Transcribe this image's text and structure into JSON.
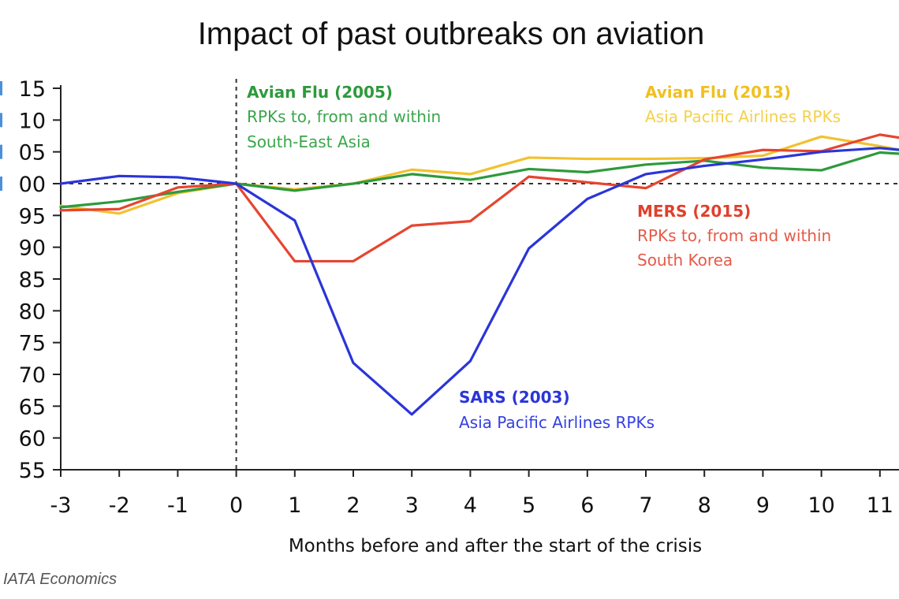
{
  "chart_data": {
    "type": "line",
    "title": "Impact of past outbreaks on aviation",
    "xlabel": "Months before and after the start of the crisis",
    "ylabel": "",
    "source": "IATA Economics",
    "x": [
      -3,
      -2,
      -1,
      0,
      1,
      2,
      3,
      4,
      5,
      6,
      7,
      8,
      9,
      10,
      11
    ],
    "xlim": [
      -3,
      11.35
    ],
    "ylim": [
      55,
      115
    ],
    "x_ticks": [
      "-3",
      "-2",
      "-1",
      "0",
      "1",
      "2",
      "3",
      "4",
      "5",
      "6",
      "7",
      "8",
      "9",
      "10",
      "11"
    ],
    "y_ticks": [
      55,
      60,
      65,
      70,
      75,
      80,
      85,
      90,
      95,
      100,
      105,
      110,
      115
    ],
    "y_tick_labels": [
      "55",
      "60",
      "65",
      "70",
      "75",
      "80",
      "85",
      "90",
      "95",
      "00",
      "05",
      "10",
      "15"
    ],
    "reference_lines": {
      "horizontal_dashed_at": 100,
      "vertical_dashed_at": 0
    },
    "grid": false,
    "legend": "inline-annotations",
    "series": [
      {
        "name": "Avian Flu (2013)",
        "color": "#f2c12e",
        "values": [
          96.5,
          95.3,
          98.5,
          100,
          99.1,
          100,
          102.2,
          101.5,
          104.1,
          103.9,
          103.9,
          104.0,
          104.4,
          107.4,
          105.9
        ],
        "tail_value": 105.3
      },
      {
        "name": "Avian Flu (2005)",
        "color": "#2e9a3c",
        "values": [
          96.3,
          97.2,
          98.7,
          100,
          98.9,
          100,
          101.5,
          100.6,
          102.3,
          101.8,
          103.0,
          103.6,
          102.5,
          102.1,
          104.9
        ],
        "tail_value": 104.7
      },
      {
        "name": "MERS (2015)",
        "color": "#e6452f",
        "values": [
          95.8,
          96.0,
          99.4,
          100,
          87.8,
          87.8,
          93.4,
          94.1,
          101.1,
          100.2,
          99.3,
          103.8,
          105.3,
          105.1,
          107.7
        ],
        "tail_value": 107.2
      },
      {
        "name": "SARS (2003)",
        "color": "#2a35d8",
        "values": [
          100,
          101.2,
          101.0,
          100,
          94.2,
          71.8,
          63.7,
          72.1,
          89.8,
          97.6,
          101.5,
          102.8,
          103.8,
          105.0,
          105.6
        ],
        "tail_value": 105.3
      }
    ],
    "annotations": [
      {
        "id": "avian2005",
        "title": "Avian Flu (2005)",
        "lines": [
          "RPKs to, from and within",
          "South-East Asia"
        ],
        "color": "#2e9a3c",
        "sub_color": "#3aa64a"
      },
      {
        "id": "avian2013",
        "title": "Avian Flu (2013)",
        "lines": [
          "Asia Pacific Airlines RPKs"
        ],
        "color": "#f0c020",
        "sub_color": "#f4d04c"
      },
      {
        "id": "mers2015",
        "title": "MERS (2015)",
        "lines": [
          "RPKs to, from and within",
          "South Korea"
        ],
        "color": "#e0402c",
        "sub_color": "#e55a48"
      },
      {
        "id": "sars2003",
        "title": "SARS (2003)",
        "lines": [
          "Asia Pacific Airlines RPKs"
        ],
        "color": "#2a35d8",
        "sub_color": "#3440e0"
      }
    ]
  }
}
